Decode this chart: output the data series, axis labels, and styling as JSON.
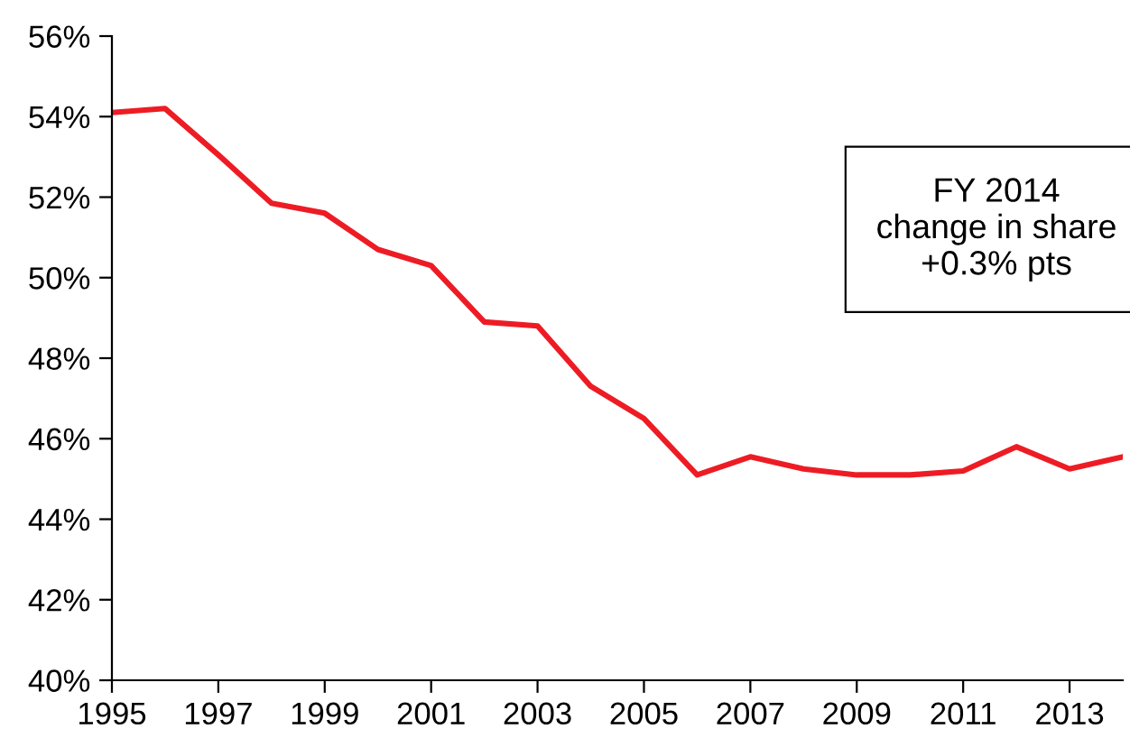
{
  "chart_data": {
    "type": "line",
    "x": [
      1995,
      1996,
      1997,
      1998,
      1999,
      2000,
      2001,
      2002,
      2003,
      2004,
      2005,
      2006,
      2007,
      2008,
      2009,
      2010,
      2011,
      2012,
      2013,
      2014
    ],
    "series": [
      {
        "color": "#ed1c24",
        "values": [
          54.1,
          54.2,
          53.05,
          51.85,
          51.6,
          50.7,
          50.3,
          48.9,
          48.8,
          47.3,
          46.5,
          45.1,
          45.55,
          45.25,
          45.1,
          45.1,
          45.2,
          45.8,
          45.25,
          45.55
        ]
      }
    ],
    "xlim": [
      1995,
      2014
    ],
    "xticks": [
      1995,
      1997,
      1999,
      2001,
      2003,
      2005,
      2007,
      2009,
      2011,
      2013
    ],
    "ylim": [
      40,
      56
    ],
    "yticks": [
      {
        "value": 40,
        "label": "40%"
      },
      {
        "value": 42,
        "label": "42%"
      },
      {
        "value": 44,
        "label": "44%"
      },
      {
        "value": 46,
        "label": "46%"
      },
      {
        "value": 48,
        "label": "48%"
      },
      {
        "value": 50,
        "label": "50%"
      },
      {
        "value": 52,
        "label": "52%"
      },
      {
        "value": 54,
        "label": "54%"
      },
      {
        "value": 56,
        "label": "56%"
      }
    ],
    "annotations": [
      "FY 2014\nchange in share\n+0.3% pts"
    ],
    "grid": false,
    "legend": false,
    "marker": "none",
    "line_style": "solid"
  }
}
